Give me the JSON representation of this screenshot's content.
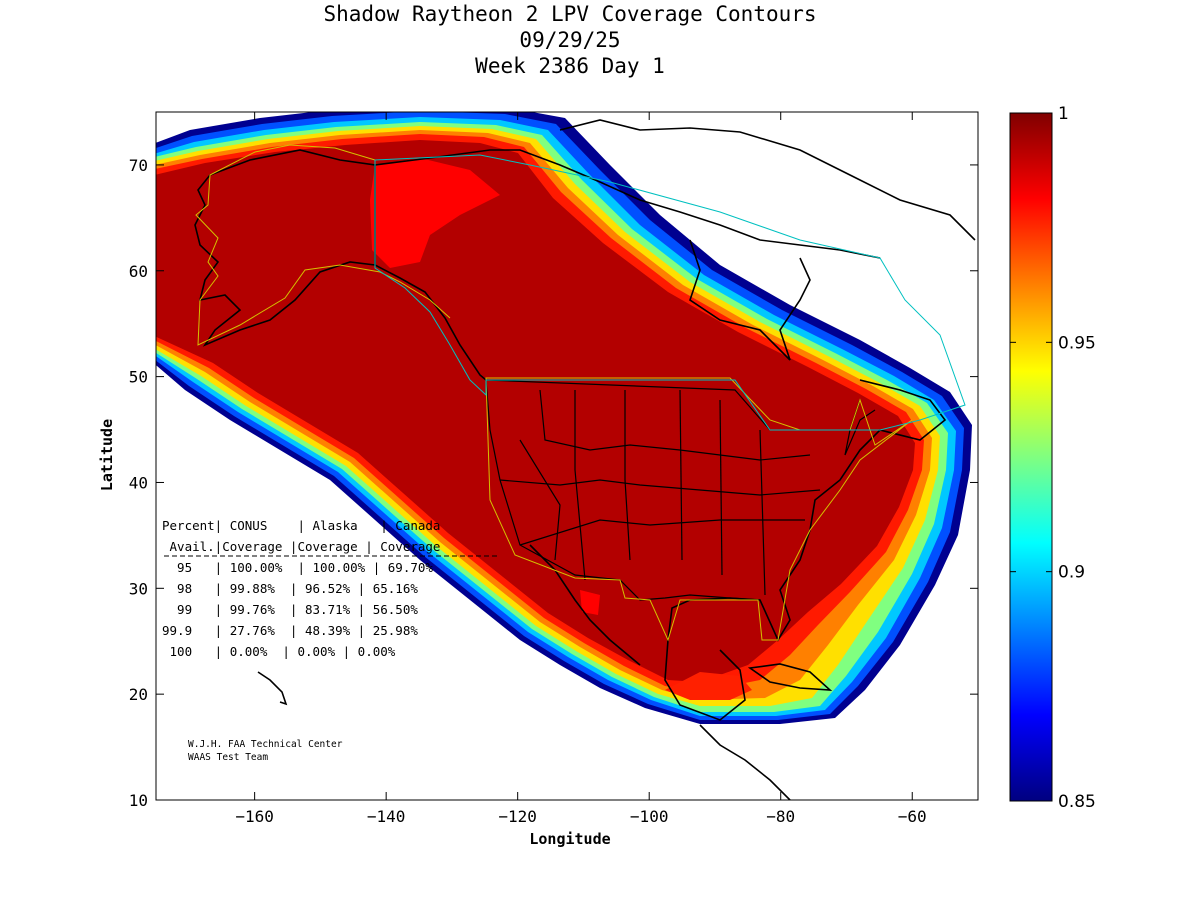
{
  "title": {
    "line1": "Shadow Raytheon 2 LPV Coverage Contours",
    "line2": "09/29/25",
    "line3": "Week 2386 Day 1"
  },
  "axes": {
    "xlabel": "Longitude",
    "ylabel": "Latitude",
    "xlim": [
      -175,
      -50
    ],
    "ylim": [
      10,
      75
    ],
    "xticks": [
      -160,
      -140,
      -120,
      -100,
      -80,
      -60
    ],
    "yticks": [
      10,
      20,
      30,
      40,
      50,
      60,
      70
    ]
  },
  "colorbar": {
    "range": [
      0.85,
      1
    ],
    "labels": [
      "1",
      "0.95",
      "0.9",
      "0.85"
    ],
    "colors": [
      "#800000",
      "#ff0000",
      "#ff8000",
      "#ffff00",
      "#80ff80",
      "#00ffff",
      "#0080ff",
      "#0000ff",
      "#000080"
    ]
  },
  "table": {
    "header1": "Percent| CONUS    | Alaska   | Canada",
    "header2": " Avail.|Coverage |Coverage | Coverage",
    "separator": "--------------------------------------",
    "rows": [
      "  95   | 100.00%  | 100.00% | 69.70%",
      "  98   | 99.88%  | 96.52% | 65.16%",
      "  99   | 99.76%  | 83.71% | 56.50%",
      "99.9   | 27.76%  | 48.39% | 25.98%",
      " 100   | 0.00%  | 0.00% | 0.00%"
    ]
  },
  "credits": {
    "line1": "W.J.H. FAA Technical Center",
    "line2": "WAAS Test Team"
  }
}
